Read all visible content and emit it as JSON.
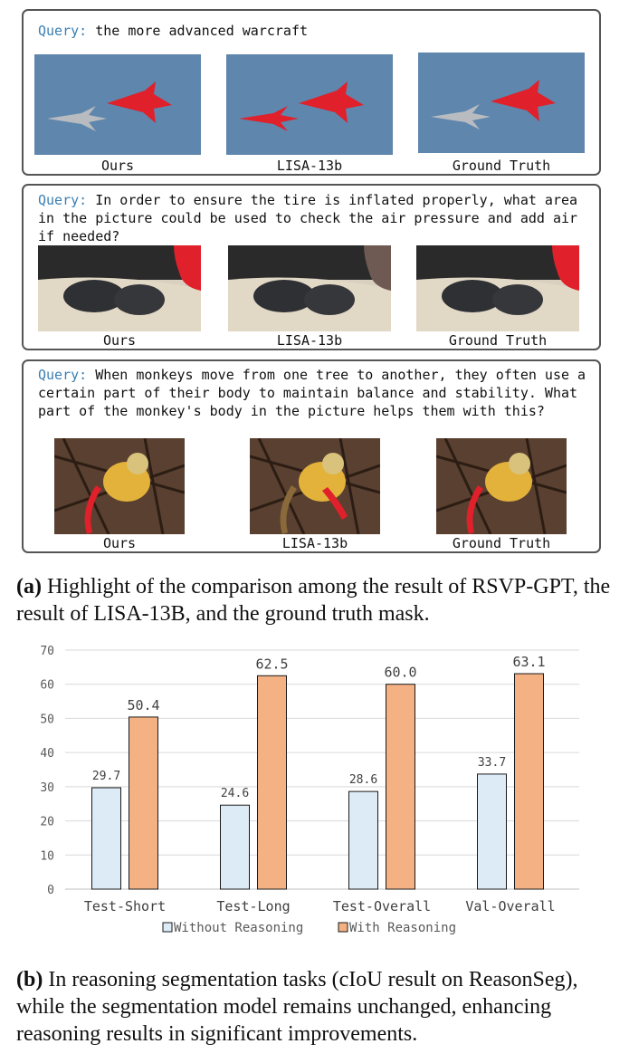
{
  "panels": [
    {
      "query_label": "Query:",
      "query_text": " the more advanced warcraft",
      "captions": [
        "Ours",
        "LISA-13b",
        "Ground Truth"
      ]
    },
    {
      "query_label": "Query:",
      "query_text": " In order to ensure the tire is inflated properly, what area in the picture could be used to check the air pressure and add air if needed?",
      "captions": [
        "Ours",
        "LISA-13b",
        "Ground Truth"
      ]
    },
    {
      "query_label": "Query:",
      "query_text": " When monkeys move from one tree to another, they often use a certain part of their body to maintain balance and stability. What part of the monkey's body in the picture helps them with this?",
      "captions": [
        "Ours",
        "LISA-13b",
        "Ground Truth"
      ]
    }
  ],
  "caption_a": {
    "tag": "(a)",
    "text": " Highlight of the comparison among the result of RSVP-GPT, the result of LISA-13B, and the ground truth mask."
  },
  "caption_b": {
    "tag": "(b)",
    "text": " In reasoning segmentation tasks (cIoU result on ReasonSeg), while the segmentation model remains unchanged, enhancing reasoning results in significant improvements."
  },
  "colors": {
    "without": "#ddebf7",
    "with": "#f4b183",
    "mask": "#e0202a",
    "query_label": "#3b7fb3"
  },
  "chart_data": {
    "type": "bar",
    "categories": [
      "Test-Short",
      "Test-Long",
      "Test-Overall",
      "Val-Overall"
    ],
    "series": [
      {
        "name": "Without Reasoning",
        "values": [
          29.7,
          24.6,
          28.6,
          33.7
        ],
        "labels": [
          "29.7",
          "24.6",
          "28.6",
          "33.7"
        ]
      },
      {
        "name": "With Reasoning",
        "values": [
          50.4,
          62.5,
          60.0,
          63.1
        ],
        "labels": [
          "50.4",
          "62.5",
          "60.0",
          "63.1"
        ]
      }
    ],
    "yticks": [
      "0",
      "10",
      "20",
      "30",
      "40",
      "50",
      "60",
      "70"
    ],
    "ylim": [
      0,
      70
    ],
    "grid": true,
    "legend": "bottom",
    "title": "",
    "xlabel": "",
    "ylabel": ""
  }
}
